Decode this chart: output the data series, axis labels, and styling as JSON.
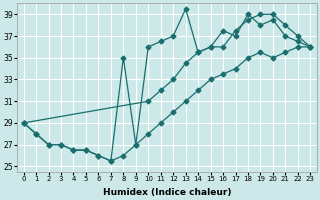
{
  "xlabel": "Humidex (Indice chaleur)",
  "background_color": "#cce8e8",
  "grid_color": "#ffffff",
  "line_color": "#1a6e6e",
  "ylim": [
    24.5,
    40.0
  ],
  "xlim": [
    -0.5,
    23.5
  ],
  "yticks": [
    25,
    27,
    29,
    31,
    33,
    35,
    37,
    39
  ],
  "xtick_labels": [
    "0",
    "1",
    "2",
    "3",
    "4",
    "5",
    "6",
    "7",
    "8",
    "9",
    "10",
    "11",
    "12",
    "13",
    "14",
    "15",
    "16",
    "17",
    "18",
    "19",
    "20",
    "21",
    "22",
    "23"
  ],
  "series_a_x": [
    0,
    1,
    2,
    3,
    4,
    5,
    6,
    7,
    8,
    9,
    10,
    11,
    12,
    13,
    14,
    15,
    16,
    17,
    18,
    19,
    20,
    21,
    22,
    23
  ],
  "series_a_y": [
    29,
    28,
    27,
    27,
    26.5,
    26.5,
    26,
    25.5,
    26,
    27,
    28,
    29,
    30,
    31,
    32,
    33,
    33.5,
    34,
    35,
    35.5,
    35,
    35.5,
    36,
    36
  ],
  "series_b_x": [
    0,
    1,
    2,
    3,
    4,
    5,
    6,
    7,
    8,
    9,
    10,
    11,
    12,
    13,
    14,
    15,
    16,
    17,
    18,
    19,
    20,
    21,
    22,
    23
  ],
  "series_b_y": [
    29,
    28,
    27,
    27,
    26.5,
    26.5,
    26,
    25.5,
    35,
    27,
    36,
    36.5,
    37,
    39.5,
    35.5,
    36,
    37.5,
    37,
    39,
    38,
    38.5,
    37,
    36.5,
    36
  ],
  "series_c_x": [
    0,
    10,
    11,
    12,
    13,
    14,
    15,
    16,
    17,
    18,
    19,
    20,
    21,
    22,
    23
  ],
  "series_c_y": [
    29,
    31,
    32,
    33,
    34.5,
    35.5,
    36,
    36,
    37.5,
    38.5,
    39,
    39,
    38,
    37,
    36
  ],
  "markersize": 2.5,
  "linewidth": 0.9
}
